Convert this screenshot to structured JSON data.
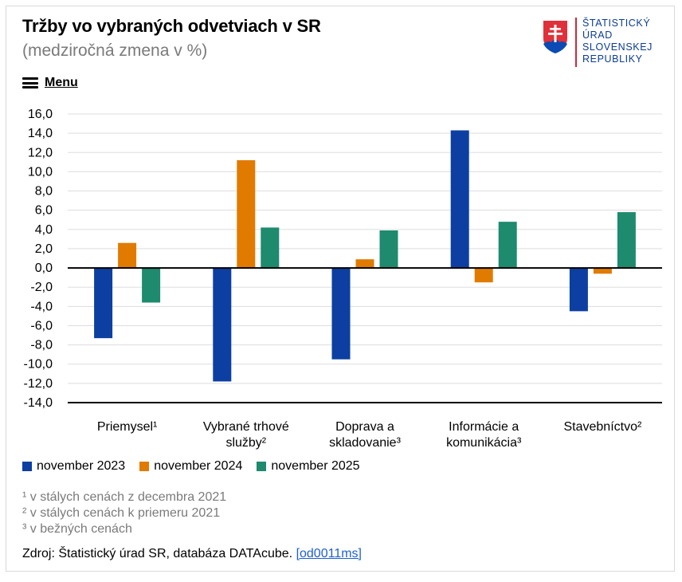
{
  "header": {
    "title": "Tržby vo vybraných odvetviach v SR",
    "subtitle": "(medziročná zmena v %)",
    "menu_label": "Menu"
  },
  "logo": {
    "lines": [
      "ŠTATISTICKÝ",
      "ÚRAD",
      "SLOVENSKEJ",
      "REPUBLIKY"
    ],
    "icon": "slovak-coat-of-arms"
  },
  "colors": {
    "series_2023": "#0c3fa1",
    "series_2024": "#e07b00",
    "series_2025": "#1e8a6e",
    "grid": "#dddddd",
    "zero_line": "#000000"
  },
  "chart_data": {
    "type": "bar",
    "title": "Tržby vo vybraných odvetviach v SR",
    "subtitle": "(medziročná zmena v %)",
    "categories": [
      [
        "Priemysel¹"
      ],
      [
        "Vybrané trhové",
        "služby²"
      ],
      [
        "Doprava a",
        "skladovanie³"
      ],
      [
        "Informácie a",
        "komunikácia³"
      ],
      [
        "Stavebníctvo²"
      ]
    ],
    "series": [
      {
        "name": "november 2023",
        "values": [
          -7.3,
          -11.8,
          -9.5,
          14.3,
          -4.5
        ]
      },
      {
        "name": "november 2024",
        "values": [
          2.6,
          11.2,
          0.9,
          -1.5,
          -0.6
        ]
      },
      {
        "name": "november 2025",
        "values": [
          -3.6,
          4.2,
          3.9,
          4.8,
          5.8
        ]
      }
    ],
    "ylim": [
      -14,
      16
    ],
    "yticks": [
      "16,0",
      "14,0",
      "12,0",
      "10,0",
      "8,0",
      "6,0",
      "4,0",
      "2,0",
      "0,0",
      "-2,0",
      "-4,0",
      "-6,0",
      "-8,0",
      "-10,0",
      "-12,0",
      "-14,0"
    ],
    "grid": true,
    "legend": "bottom-left"
  },
  "footnotes": [
    "¹ v stálych cenách z decembra 2021",
    "² v stálych cenách k priemeru 2021",
    "³ v bežných cenách"
  ],
  "source": {
    "text": "Zdroj: Štatistický úrad SR, databáza DATAcube.",
    "link_text": "[od0011ms]"
  }
}
